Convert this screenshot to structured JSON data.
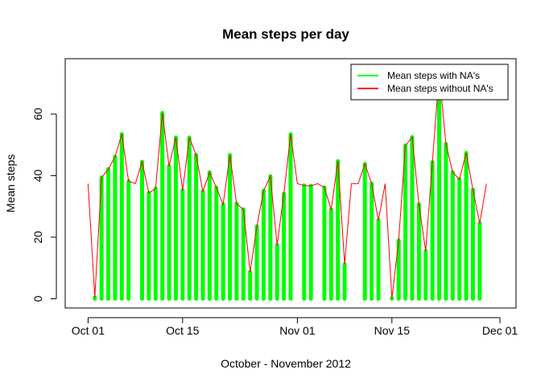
{
  "chart_data": {
    "type": "line",
    "title": "Mean steps per day",
    "xlabel": "October - November 2012",
    "ylabel": "Mean steps",
    "xlim": [
      "2012-09-30",
      "2012-12-01"
    ],
    "ylim": [
      0,
      70
    ],
    "x_ticks": [
      {
        "date": "2012-10-01",
        "label": "Oct 01"
      },
      {
        "date": "2012-10-15",
        "label": "Oct 15"
      },
      {
        "date": "2012-11-01",
        "label": "Nov 01"
      },
      {
        "date": "2012-11-15",
        "label": "Nov 15"
      },
      {
        "date": "2012-12-01",
        "label": "Dec 01"
      }
    ],
    "y_ticks": [
      0,
      20,
      40,
      60
    ],
    "grid": false,
    "legend": {
      "position": "top-right",
      "entries": [
        {
          "label": "Mean steps with NA's",
          "color": "#00ff00"
        },
        {
          "label": "Mean steps without NA's",
          "color": "#ff0000"
        }
      ]
    },
    "x": [
      "2012-10-01",
      "2012-10-02",
      "2012-10-03",
      "2012-10-04",
      "2012-10-05",
      "2012-10-06",
      "2012-10-07",
      "2012-10-08",
      "2012-10-09",
      "2012-10-10",
      "2012-10-11",
      "2012-10-12",
      "2012-10-13",
      "2012-10-14",
      "2012-10-15",
      "2012-10-16",
      "2012-10-17",
      "2012-10-18",
      "2012-10-19",
      "2012-10-20",
      "2012-10-21",
      "2012-10-22",
      "2012-10-23",
      "2012-10-24",
      "2012-10-25",
      "2012-10-26",
      "2012-10-27",
      "2012-10-28",
      "2012-10-29",
      "2012-10-30",
      "2012-10-31",
      "2012-11-01",
      "2012-11-02",
      "2012-11-03",
      "2012-11-04",
      "2012-11-05",
      "2012-11-06",
      "2012-11-07",
      "2012-11-08",
      "2012-11-09",
      "2012-11-10",
      "2012-11-11",
      "2012-11-12",
      "2012-11-13",
      "2012-11-14",
      "2012-11-15",
      "2012-11-16",
      "2012-11-17",
      "2012-11-18",
      "2012-11-19",
      "2012-11-20",
      "2012-11-21",
      "2012-11-22",
      "2012-11-23",
      "2012-11-24",
      "2012-11-25",
      "2012-11-26",
      "2012-11-27",
      "2012-11-28",
      "2012-11-29",
      "2012-11-30"
    ],
    "series": [
      {
        "name": "Mean steps with NA's",
        "color": "#00ff00",
        "style": "histogram",
        "values": [
          null,
          0.4,
          39.4,
          42.1,
          46.2,
          53.5,
          38.2,
          null,
          44.5,
          34.4,
          35.8,
          60.4,
          43.1,
          52.4,
          35.2,
          52.4,
          46.7,
          34.9,
          41.1,
          36.1,
          30.6,
          46.7,
          30.9,
          29.0,
          8.7,
          23.5,
          35.1,
          39.8,
          17.4,
          34.1,
          53.5,
          null,
          36.8,
          36.7,
          null,
          36.2,
          28.9,
          44.7,
          11.2,
          null,
          null,
          43.8,
          37.4,
          25.5,
          null,
          0.1,
          18.9,
          49.8,
          52.5,
          30.7,
          15.5,
          44.4,
          73.6,
          50.3,
          41.1,
          38.8,
          47.4,
          35.4,
          24.5,
          null,
          null
        ]
      },
      {
        "name": "Mean steps without NA's",
        "color": "#ff0000",
        "style": "line",
        "values": [
          37.4,
          0.4,
          39.4,
          42.1,
          46.2,
          53.5,
          38.2,
          37.4,
          44.5,
          34.4,
          35.8,
          60.4,
          43.1,
          52.4,
          35.2,
          52.4,
          46.7,
          34.9,
          41.1,
          36.1,
          30.6,
          46.7,
          30.9,
          29.0,
          8.7,
          23.5,
          35.1,
          39.8,
          17.4,
          34.1,
          53.5,
          37.4,
          36.8,
          36.7,
          37.4,
          36.2,
          28.9,
          44.7,
          11.2,
          37.4,
          37.4,
          43.8,
          37.4,
          25.5,
          37.4,
          0.1,
          18.9,
          49.8,
          52.5,
          30.7,
          15.5,
          44.4,
          73.6,
          50.3,
          41.1,
          38.8,
          47.4,
          35.4,
          24.5,
          37.4,
          null
        ]
      }
    ]
  }
}
